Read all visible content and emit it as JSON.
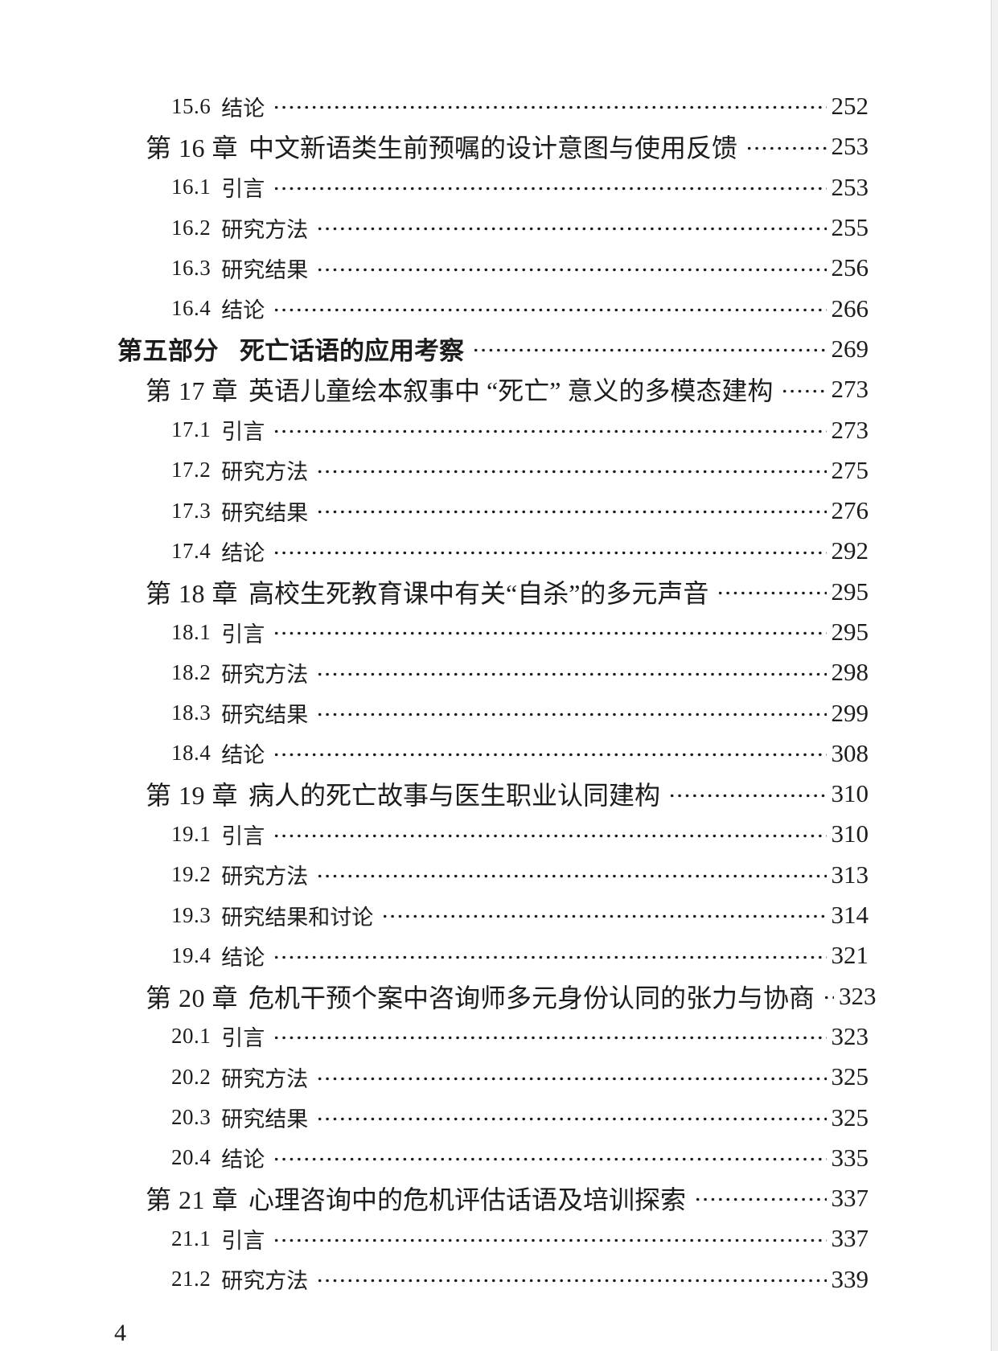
{
  "page": {
    "footer_page_number": "4",
    "background_color": "#ffffff",
    "text_color": "#1c1c1c",
    "dot_leader_color": "#1a1a1a",
    "edge_band_color": "#f1f1f1"
  },
  "toc": {
    "rows": [
      {
        "level": "section",
        "num": "15.6",
        "title": "结论",
        "page": "252"
      },
      {
        "level": "chapter",
        "num": "第 16 章",
        "title": "中文新语类生前预嘱的设计意图与使用反馈",
        "page": "253"
      },
      {
        "level": "section",
        "num": "16.1",
        "title": "引言",
        "page": "253"
      },
      {
        "level": "section",
        "num": "16.2",
        "title": "研究方法",
        "page": "255"
      },
      {
        "level": "section",
        "num": "16.3",
        "title": "研究结果",
        "page": "256"
      },
      {
        "level": "section",
        "num": "16.4",
        "title": "结论",
        "page": "266"
      },
      {
        "level": "part",
        "num": "第五部分",
        "title": "死亡话语的应用考察",
        "page": "269"
      },
      {
        "level": "chapter",
        "num": "第 17 章",
        "title": "英语儿童绘本叙事中 “死亡” 意义的多模态建构",
        "page": "273"
      },
      {
        "level": "section",
        "num": "17.1",
        "title": "引言",
        "page": "273"
      },
      {
        "level": "section",
        "num": "17.2",
        "title": "研究方法",
        "page": "275"
      },
      {
        "level": "section",
        "num": "17.3",
        "title": "研究结果",
        "page": "276"
      },
      {
        "level": "section",
        "num": "17.4",
        "title": "结论",
        "page": "292"
      },
      {
        "level": "chapter",
        "num": "第 18 章",
        "title": "高校生死教育课中有关“自杀”的多元声音",
        "page": "295"
      },
      {
        "level": "section",
        "num": "18.1",
        "title": "引言",
        "page": "295"
      },
      {
        "level": "section",
        "num": "18.2",
        "title": "研究方法",
        "page": "298"
      },
      {
        "level": "section",
        "num": "18.3",
        "title": "研究结果",
        "page": "299"
      },
      {
        "level": "section",
        "num": "18.4",
        "title": "结论",
        "page": "308"
      },
      {
        "level": "chapter",
        "num": "第 19 章",
        "title": "病人的死亡故事与医生职业认同建构",
        "page": "310"
      },
      {
        "level": "section",
        "num": "19.1",
        "title": "引言",
        "page": "310"
      },
      {
        "level": "section",
        "num": "19.2",
        "title": "研究方法",
        "page": "313"
      },
      {
        "level": "section",
        "num": "19.3",
        "title": "研究结果和讨论",
        "page": "314"
      },
      {
        "level": "section",
        "num": "19.4",
        "title": "结论",
        "page": "321"
      },
      {
        "level": "chapter",
        "num": "第 20 章",
        "title": "危机干预个案中咨询师多元身份认同的张力与协商",
        "page": "323"
      },
      {
        "level": "section",
        "num": "20.1",
        "title": "引言",
        "page": "323"
      },
      {
        "level": "section",
        "num": "20.2",
        "title": "研究方法",
        "page": "325"
      },
      {
        "level": "section",
        "num": "20.3",
        "title": "研究结果",
        "page": "325"
      },
      {
        "level": "section",
        "num": "20.4",
        "title": "结论",
        "page": "335"
      },
      {
        "level": "chapter",
        "num": "第 21 章",
        "title": "心理咨询中的危机评估话语及培训探索",
        "page": "337"
      },
      {
        "level": "section",
        "num": "21.1",
        "title": "引言",
        "page": "337"
      },
      {
        "level": "section",
        "num": "21.2",
        "title": "研究方法",
        "page": "339"
      }
    ]
  }
}
